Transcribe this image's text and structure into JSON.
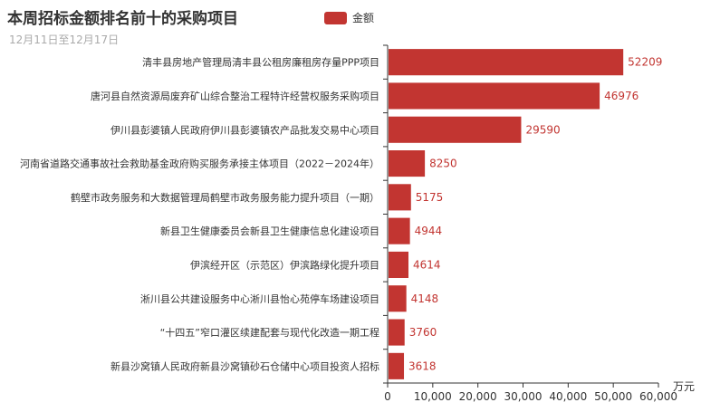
{
  "chart_data": {
    "type": "bar",
    "orientation": "horizontal",
    "title": "本周招标金额排名前十的采购项目",
    "subtitle": "12月11日至12月17日",
    "xunit": "万元",
    "xlim": [
      0,
      60000
    ],
    "xticks": [
      0,
      10000,
      20000,
      30000,
      40000,
      50000,
      60000
    ],
    "xtick_labels": [
      "0",
      "10,000",
      "20,000",
      "30,000",
      "40,000",
      "50,000",
      "60,000"
    ],
    "legend": {
      "position": "top",
      "label": "金额"
    },
    "grid": false,
    "series_color": "#c23531",
    "series": [
      {
        "name": "金额",
        "values": [
          52209,
          46976,
          29590,
          8250,
          5175,
          4944,
          4614,
          4148,
          3760,
          3618
        ],
        "labels": [
          "52209",
          "46976",
          "29590",
          "8250",
          "5175",
          "4944",
          "4614",
          "4148",
          "3760",
          "3618"
        ]
      }
    ],
    "categories": [
      "清丰县房地产管理局清丰县公租房廉租房存量PPP项目",
      "唐河县自然资源局废弃矿山综合整治工程特许经营权服务采购项目",
      "伊川县彭婆镇人民政府伊川县彭婆镇农产品批发交易中心项目",
      "河南省道路交通事故社会救助基金政府购买服务承接主体项目（2022－2024年）",
      "鹤壁市政务服务和大数据管理局鹤壁市政务服务能力提升项目（一期）",
      "新县卫生健康委员会新县卫生健康信息化建设项目",
      "伊滨经开区（示范区）伊滨路绿化提升项目",
      "淅川县公共建设服务中心淅川县怡心苑停车场建设项目",
      "“十四五”窄口灌区续建配套与现代化改造一期工程",
      "新县沙窝镇人民政府新县沙窝镇砂石仓储中心项目投资人招标"
    ]
  }
}
